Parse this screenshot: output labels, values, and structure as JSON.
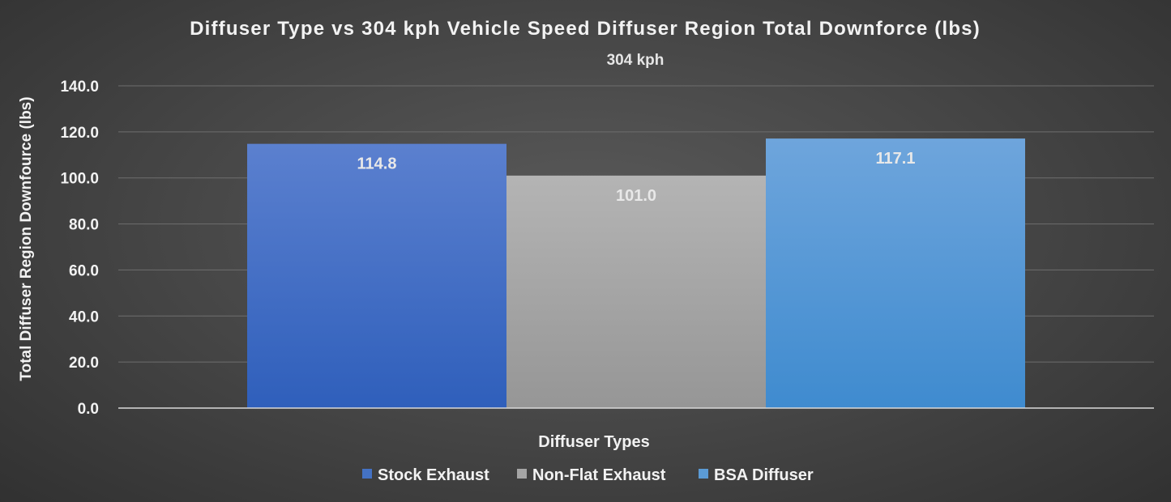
{
  "chart_data": {
    "type": "bar",
    "title": "Diffuser Type vs 304 kph Vehicle Speed Diffuser Region Total Downforce (lbs)",
    "subtitle": "304 kph",
    "xlabel": "Diffuser Types",
    "ylabel": "Total Diffuser Region Downfource (lbs)",
    "ylim": [
      0,
      140
    ],
    "yticks": [
      "0.0",
      "20.0",
      "40.0",
      "60.0",
      "80.0",
      "100.0",
      "120.0",
      "140.0"
    ],
    "grid": true,
    "legend_position": "bottom",
    "categories": [
      "304 kph"
    ],
    "series": [
      {
        "name": "Stock Exhaust",
        "values": [
          114.8
        ],
        "labels": [
          "114.8"
        ],
        "color": "#4472c4"
      },
      {
        "name": "Non-Flat Exhaust",
        "values": [
          101.0
        ],
        "labels": [
          "101.0"
        ],
        "color": "#a5a5a5"
      },
      {
        "name": "BSA Diffuser",
        "values": [
          117.1
        ],
        "labels": [
          "117.1"
        ],
        "color": "#5b9bd5"
      }
    ]
  }
}
